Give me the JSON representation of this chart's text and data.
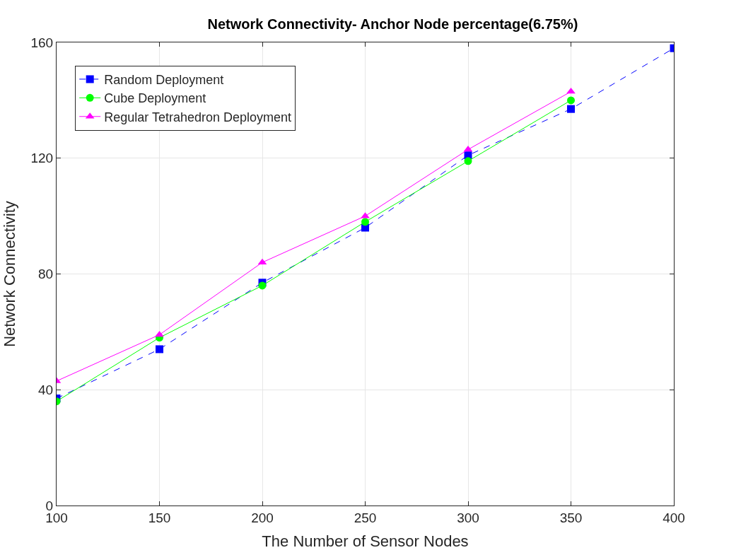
{
  "chart_data": {
    "type": "line",
    "title": "Network Connectivity- Anchor Node percentage(6.75%)",
    "xlabel": "The Number of Sensor Nodes",
    "ylabel": "Network Connectivity",
    "x": [
      100,
      150,
      200,
      250,
      300,
      350,
      400
    ],
    "series": [
      {
        "name": "Random Deployment",
        "color": "#0000ff",
        "marker": "square",
        "line_style": "dashed",
        "values": [
          37,
          54,
          77,
          96,
          121,
          137,
          158
        ]
      },
      {
        "name": "Cube Deployment",
        "color": "#00ff00",
        "marker": "circle",
        "line_style": "solid",
        "values": [
          36,
          58,
          76,
          98,
          119,
          140,
          null
        ]
      },
      {
        "name": "Regular Tetrahedron Deployment",
        "color": "#ff00ff",
        "marker": "triangle",
        "line_style": "solid",
        "values": [
          43,
          59,
          84,
          100,
          123,
          143,
          null
        ]
      }
    ],
    "xlim": [
      100,
      400
    ],
    "xticks": [
      100,
      150,
      200,
      250,
      300,
      350,
      400
    ],
    "ylim": [
      0,
      160
    ],
    "yticks": [
      0,
      40,
      80,
      120,
      160
    ],
    "grid": true,
    "legend": "top left"
  }
}
